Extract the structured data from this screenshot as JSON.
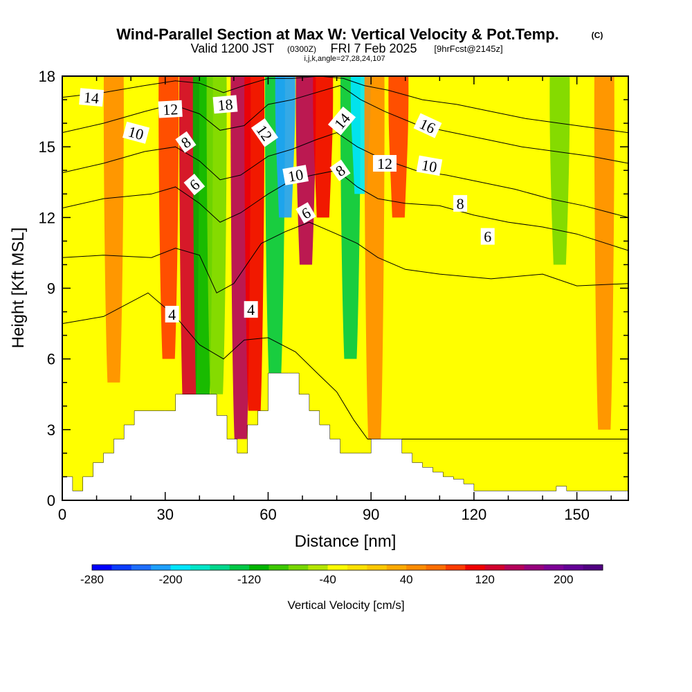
{
  "title": "Wind-Parallel Section at Max W: Vertical Velocity & Pot.Temp.",
  "title_mark": "(C)",
  "subtitle_main": "Valid 1200 JST",
  "subtitle_utc": "(0300Z)",
  "subtitle_date": "FRI 7 Feb 2025",
  "subtitle_fcst": "[9hrFcst@2145z]",
  "subtitle_indices": "i,j,k,angle=27,28,24,107",
  "chart_data": {
    "type": "heatmap",
    "xlabel": "Distance [nm]",
    "ylabel": "Height [Kft MSL]",
    "xlim": [
      0,
      165
    ],
    "ylim": [
      0,
      18
    ],
    "xticks": [
      "0",
      "30",
      "60",
      "90",
      "120",
      "150"
    ],
    "yticks": [
      "0",
      "3",
      "6",
      "9",
      "12",
      "15",
      "18"
    ],
    "colorbar": {
      "label": "Vertical Velocity [cm/s]",
      "range": [
        -280,
        240
      ],
      "step": 20,
      "tick_labels": [
        "-280",
        "-200",
        "-120",
        "-40",
        "40",
        "120",
        "200"
      ],
      "colors": [
        "#0000ff",
        "#0a3cff",
        "#1e6eff",
        "#1ea0ff",
        "#00e6ff",
        "#00e6c8",
        "#00d78c",
        "#00c846",
        "#00b400",
        "#3cc800",
        "#78d700",
        "#b4e600",
        "#ffff00",
        "#ffe100",
        "#ffc800",
        "#ffaa00",
        "#ff8c00",
        "#ff6e00",
        "#ff3c00",
        "#f00000",
        "#d2002d",
        "#b4005a",
        "#96007d",
        "#7d0096",
        "#640096",
        "#500082"
      ]
    },
    "terrain_kft": [
      [
        0,
        1.0
      ],
      [
        3,
        0.4
      ],
      [
        6,
        1.0
      ],
      [
        9,
        1.6
      ],
      [
        12,
        2.0
      ],
      [
        15,
        2.6
      ],
      [
        18,
        3.2
      ],
      [
        21,
        3.8
      ],
      [
        30,
        3.8
      ],
      [
        33,
        4.5
      ],
      [
        42,
        4.5
      ],
      [
        45,
        3.6
      ],
      [
        48,
        2.6
      ],
      [
        51,
        2.0
      ],
      [
        54,
        3.2
      ],
      [
        57,
        3.8
      ],
      [
        60,
        5.4
      ],
      [
        66,
        5.4
      ],
      [
        69,
        4.5
      ],
      [
        72,
        3.8
      ],
      [
        75,
        3.2
      ],
      [
        78,
        2.6
      ],
      [
        81,
        2.0
      ],
      [
        87,
        2.0
      ],
      [
        90,
        2.6
      ],
      [
        96,
        2.6
      ],
      [
        99,
        2.0
      ],
      [
        102,
        1.6
      ],
      [
        105,
        1.4
      ],
      [
        108,
        1.2
      ],
      [
        111,
        1.0
      ],
      [
        114,
        0.9
      ],
      [
        117,
        0.7
      ],
      [
        120,
        0.4
      ],
      [
        141,
        0.4
      ],
      [
        144,
        0.6
      ],
      [
        147,
        0.4
      ],
      [
        165,
        0.4
      ]
    ],
    "velocity_bands": [
      {
        "x_center": 15,
        "base_kft": 5,
        "value": 40
      },
      {
        "x_center": 24,
        "base_kft": 12,
        "value": -40
      },
      {
        "x_center": 31,
        "base_kft": 6,
        "value": 80
      },
      {
        "x_center": 37,
        "base_kft": 3.6,
        "value": 120
      },
      {
        "x_center": 41,
        "base_kft": 3.6,
        "value": -120
      },
      {
        "x_center": 45,
        "base_kft": 4.5,
        "value": -80
      },
      {
        "x_center": 52,
        "base_kft": 2.6,
        "value": 140
      },
      {
        "x_center": 56,
        "base_kft": 3.8,
        "value": 100
      },
      {
        "x_center": 62,
        "base_kft": 5.4,
        "value": -140
      },
      {
        "x_center": 65,
        "base_kft": 12,
        "value": -220
      },
      {
        "x_center": 71,
        "base_kft": 10,
        "value": 140
      },
      {
        "x_center": 76,
        "base_kft": 12,
        "value": 100
      },
      {
        "x_center": 84,
        "base_kft": 6,
        "value": -140
      },
      {
        "x_center": 87,
        "base_kft": 13,
        "value": -200
      },
      {
        "x_center": 91,
        "base_kft": 2.6,
        "value": 40
      },
      {
        "x_center": 98,
        "base_kft": 12,
        "value": 80
      },
      {
        "x_center": 107,
        "base_kft": 12,
        "value": -40
      },
      {
        "x_center": 140,
        "base_kft": 12,
        "value": -40
      },
      {
        "x_center": 145,
        "base_kft": 10,
        "value": -80
      },
      {
        "x_center": 158,
        "base_kft": 3,
        "value": 40
      }
    ],
    "theta_contours": [
      {
        "label": "4",
        "x": [
          0,
          12,
          25,
          33,
          40,
          47,
          53,
          60,
          68,
          75,
          80,
          85,
          89,
          95,
          105,
          120,
          140,
          165
        ],
        "y": [
          7.5,
          7.8,
          8.8,
          7.8,
          6.6,
          6.0,
          6.8,
          6.9,
          6.3,
          5.3,
          4.6,
          3.4,
          2.6,
          2.6,
          2.6,
          2.6,
          2.6,
          2.6
        ]
      },
      {
        "label": "6",
        "x": [
          0,
          12,
          26,
          33,
          40,
          45,
          50,
          58,
          65,
          72,
          80,
          86,
          92,
          100,
          110,
          125,
          140,
          150,
          165
        ],
        "y": [
          10.3,
          10.4,
          10.3,
          10.7,
          10.4,
          8.8,
          9.2,
          10.9,
          11.4,
          11.8,
          11.3,
          10.9,
          10.3,
          9.8,
          9.6,
          9.4,
          9.6,
          9.1,
          9.2
        ]
      },
      {
        "label": "8",
        "x": [
          0,
          12,
          26,
          33,
          40,
          46,
          52,
          60,
          67,
          73,
          80,
          86,
          92,
          100,
          110,
          120,
          130,
          140,
          150,
          165
        ],
        "y": [
          12.4,
          12.8,
          13.0,
          13.3,
          12.6,
          11.8,
          12.2,
          13.0,
          13.6,
          13.8,
          14.0,
          13.3,
          12.8,
          12.6,
          12.5,
          12.1,
          11.8,
          11.6,
          11.3,
          10.6
        ]
      },
      {
        "label": "10",
        "x": [
          0,
          12,
          24,
          33,
          40,
          46,
          52,
          60,
          67,
          74,
          80,
          86,
          93,
          103,
          112,
          122,
          132,
          142,
          152,
          165
        ],
        "y": [
          13.9,
          14.3,
          14.8,
          15.0,
          14.4,
          13.6,
          13.8,
          14.6,
          14.9,
          15.3,
          15.6,
          15.0,
          14.5,
          14.0,
          13.8,
          13.5,
          13.2,
          12.8,
          12.5,
          12.0
        ]
      },
      {
        "label": "12",
        "x": [
          0,
          12,
          24,
          32,
          40,
          46,
          53,
          60,
          67,
          74,
          81,
          87,
          94,
          104,
          114,
          124,
          134,
          144,
          154,
          165
        ],
        "y": [
          15.6,
          16.0,
          16.5,
          16.8,
          16.4,
          15.7,
          15.9,
          16.8,
          17.0,
          17.3,
          17.6,
          17.0,
          16.5,
          15.9,
          15.6,
          15.3,
          15.0,
          14.8,
          14.6,
          14.3
        ]
      },
      {
        "label": "14",
        "x": [
          0,
          12,
          24,
          33,
          40,
          47,
          53,
          60,
          67,
          75,
          82,
          88,
          95,
          105,
          115,
          125,
          135,
          145,
          155,
          165
        ],
        "y": [
          17.1,
          17.3,
          17.6,
          17.8,
          17.7,
          17.3,
          17.6,
          17.9,
          17.9,
          18.0,
          17.9,
          17.6,
          17.4,
          17.0,
          16.8,
          16.5,
          16.2,
          16.0,
          15.8,
          15.6
        ]
      }
    ],
    "contour_labels": [
      {
        "text": "14",
        "x": 8.5,
        "y": 17.1,
        "rot": 5
      },
      {
        "text": "12",
        "x": 31.5,
        "y": 16.6,
        "rot": -3
      },
      {
        "text": "18",
        "x": 47.5,
        "y": 16.8,
        "rot": -5
      },
      {
        "text": "10",
        "x": 21.5,
        "y": 15.6,
        "rot": 15
      },
      {
        "text": "8",
        "x": 36,
        "y": 15.2,
        "rot": -35
      },
      {
        "text": "6",
        "x": 38.5,
        "y": 13.4,
        "rot": -40
      },
      {
        "text": "12",
        "x": 59,
        "y": 15.6,
        "rot": 55
      },
      {
        "text": "14",
        "x": 81.5,
        "y": 16.1,
        "rot": -50
      },
      {
        "text": "16",
        "x": 106.5,
        "y": 15.9,
        "rot": 25
      },
      {
        "text": "10",
        "x": 68,
        "y": 13.8,
        "rot": -10
      },
      {
        "text": "8",
        "x": 81,
        "y": 14.0,
        "rot": -35
      },
      {
        "text": "12",
        "x": 94,
        "y": 14.3,
        "rot": 0
      },
      {
        "text": "10",
        "x": 107,
        "y": 14.2,
        "rot": 10
      },
      {
        "text": "6",
        "x": 71,
        "y": 12.2,
        "rot": -30
      },
      {
        "text": "8",
        "x": 116,
        "y": 12.6,
        "rot": 0
      },
      {
        "text": "6",
        "x": 124,
        "y": 11.2,
        "rot": 0
      },
      {
        "text": "4",
        "x": 32,
        "y": 7.9,
        "rot": 0
      },
      {
        "text": "4",
        "x": 55,
        "y": 8.1,
        "rot": 0
      }
    ]
  }
}
